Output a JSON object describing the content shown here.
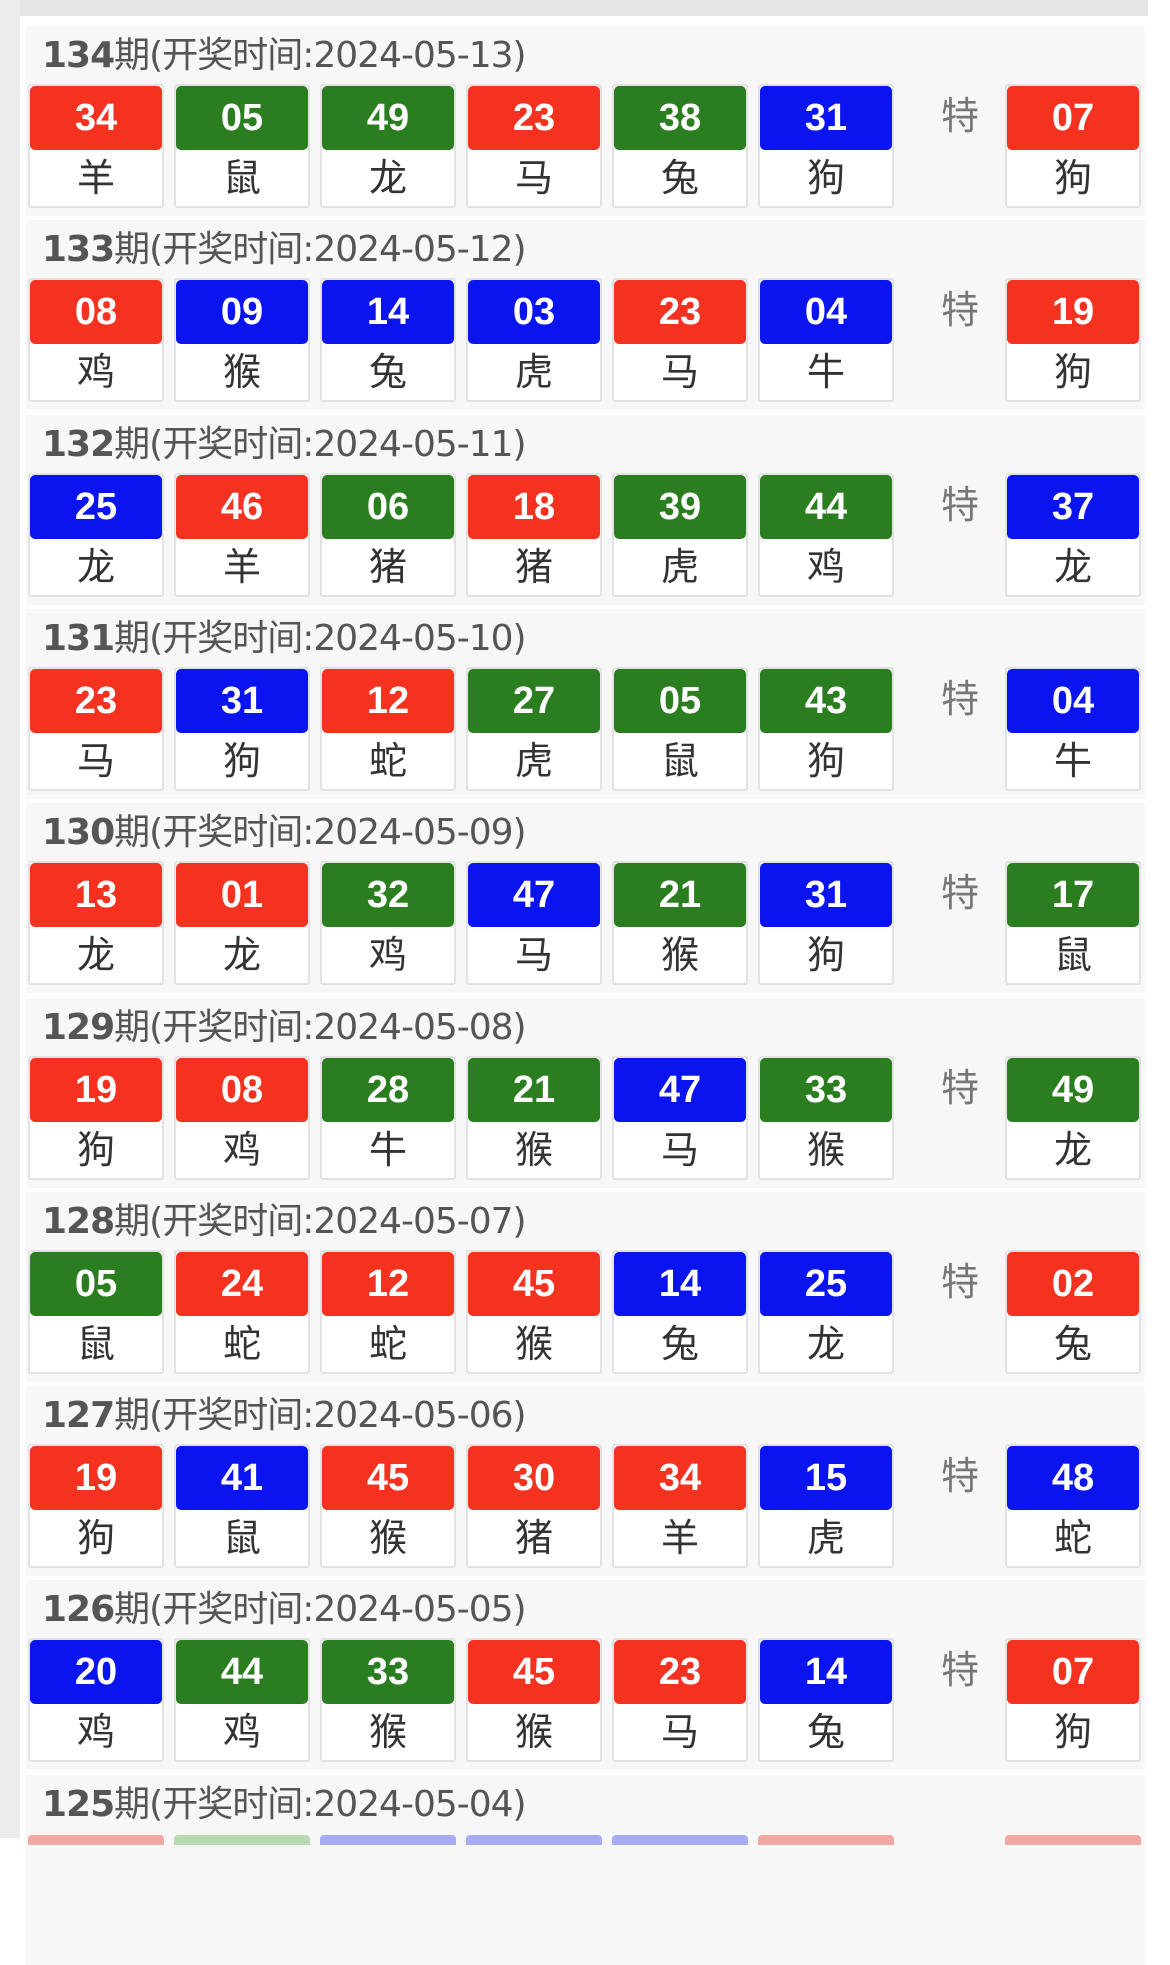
{
  "colors": {
    "red": "#f53220",
    "green": "#2a7e20",
    "blue": "#0a14ef"
  },
  "special_label": "特",
  "draws": [
    {
      "issue": "134",
      "label": "期(开奖时间:2024-05-13)",
      "balls": [
        [
          "34",
          "羊",
          "red"
        ],
        [
          "05",
          "鼠",
          "green"
        ],
        [
          "49",
          "龙",
          "green"
        ],
        [
          "23",
          "马",
          "red"
        ],
        [
          "38",
          "兔",
          "green"
        ],
        [
          "31",
          "狗",
          "blue"
        ]
      ],
      "special": [
        "07",
        "狗",
        "red"
      ]
    },
    {
      "issue": "133",
      "label": "期(开奖时间:2024-05-12)",
      "balls": [
        [
          "08",
          "鸡",
          "red"
        ],
        [
          "09",
          "猴",
          "blue"
        ],
        [
          "14",
          "兔",
          "blue"
        ],
        [
          "03",
          "虎",
          "blue"
        ],
        [
          "23",
          "马",
          "red"
        ],
        [
          "04",
          "牛",
          "blue"
        ]
      ],
      "special": [
        "19",
        "狗",
        "red"
      ]
    },
    {
      "issue": "132",
      "label": "期(开奖时间:2024-05-11)",
      "balls": [
        [
          "25",
          "龙",
          "blue"
        ],
        [
          "46",
          "羊",
          "red"
        ],
        [
          "06",
          "猪",
          "green"
        ],
        [
          "18",
          "猪",
          "red"
        ],
        [
          "39",
          "虎",
          "green"
        ],
        [
          "44",
          "鸡",
          "green"
        ]
      ],
      "special": [
        "37",
        "龙",
        "blue"
      ]
    },
    {
      "issue": "131",
      "label": "期(开奖时间:2024-05-10)",
      "balls": [
        [
          "23",
          "马",
          "red"
        ],
        [
          "31",
          "狗",
          "blue"
        ],
        [
          "12",
          "蛇",
          "red"
        ],
        [
          "27",
          "虎",
          "green"
        ],
        [
          "05",
          "鼠",
          "green"
        ],
        [
          "43",
          "狗",
          "green"
        ]
      ],
      "special": [
        "04",
        "牛",
        "blue"
      ]
    },
    {
      "issue": "130",
      "label": "期(开奖时间:2024-05-09)",
      "balls": [
        [
          "13",
          "龙",
          "red"
        ],
        [
          "01",
          "龙",
          "red"
        ],
        [
          "32",
          "鸡",
          "green"
        ],
        [
          "47",
          "马",
          "blue"
        ],
        [
          "21",
          "猴",
          "green"
        ],
        [
          "31",
          "狗",
          "blue"
        ]
      ],
      "special": [
        "17",
        "鼠",
        "green"
      ]
    },
    {
      "issue": "129",
      "label": "期(开奖时间:2024-05-08)",
      "balls": [
        [
          "19",
          "狗",
          "red"
        ],
        [
          "08",
          "鸡",
          "red"
        ],
        [
          "28",
          "牛",
          "green"
        ],
        [
          "21",
          "猴",
          "green"
        ],
        [
          "47",
          "马",
          "blue"
        ],
        [
          "33",
          "猴",
          "green"
        ]
      ],
      "special": [
        "49",
        "龙",
        "green"
      ]
    },
    {
      "issue": "128",
      "label": "期(开奖时间:2024-05-07)",
      "balls": [
        [
          "05",
          "鼠",
          "green"
        ],
        [
          "24",
          "蛇",
          "red"
        ],
        [
          "12",
          "蛇",
          "red"
        ],
        [
          "45",
          "猴",
          "red"
        ],
        [
          "14",
          "兔",
          "blue"
        ],
        [
          "25",
          "龙",
          "blue"
        ]
      ],
      "special": [
        "02",
        "兔",
        "red"
      ]
    },
    {
      "issue": "127",
      "label": "期(开奖时间:2024-05-06)",
      "balls": [
        [
          "19",
          "狗",
          "red"
        ],
        [
          "41",
          "鼠",
          "blue"
        ],
        [
          "45",
          "猴",
          "red"
        ],
        [
          "30",
          "猪",
          "red"
        ],
        [
          "34",
          "羊",
          "red"
        ],
        [
          "15",
          "虎",
          "blue"
        ]
      ],
      "special": [
        "48",
        "蛇",
        "blue"
      ]
    },
    {
      "issue": "126",
      "label": "期(开奖时间:2024-05-05)",
      "balls": [
        [
          "20",
          "鸡",
          "blue"
        ],
        [
          "44",
          "鸡",
          "green"
        ],
        [
          "33",
          "猴",
          "green"
        ],
        [
          "45",
          "猴",
          "red"
        ],
        [
          "23",
          "马",
          "red"
        ],
        [
          "14",
          "兔",
          "blue"
        ]
      ],
      "special": [
        "07",
        "狗",
        "red"
      ]
    },
    {
      "issue": "125",
      "label": "期(开奖时间:2024-05-04)",
      "balls": [],
      "special": null
    }
  ]
}
